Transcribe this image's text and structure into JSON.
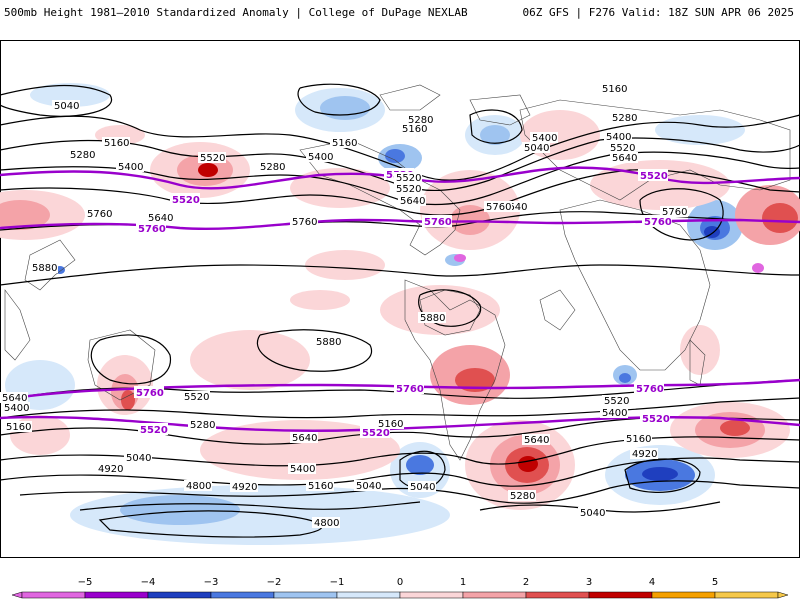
{
  "header": {
    "left_title": "500mb Height 1981–2010 Standardized Anomaly | College of DuPage NEXLAB",
    "right_title": "06Z GFS | F276 Valid: 18Z SUN APR 06 2025"
  },
  "colorbar": {
    "ticks": [
      "−5",
      "−4",
      "−3",
      "−2",
      "−1",
      "0",
      "1",
      "2",
      "3",
      "4",
      "5"
    ],
    "colors": [
      "#e066e0",
      "#9900cc",
      "#1f3fbf",
      "#4a78e0",
      "#9fc4f0",
      "#d6e8fa",
      "#fbd6d8",
      "#f4a3a8",
      "#e05050",
      "#c00000",
      "#f5a000",
      "#f5c84a"
    ]
  },
  "map": {
    "contour_labels": [
      {
        "text": "5040",
        "kind": "height"
      },
      {
        "text": "5160",
        "kind": "height"
      },
      {
        "text": "5280",
        "kind": "height"
      },
      {
        "text": "5400",
        "kind": "height"
      },
      {
        "text": "5520",
        "kind": "height"
      },
      {
        "text": "5640",
        "kind": "height"
      },
      {
        "text": "5760",
        "kind": "height"
      },
      {
        "text": "5880",
        "kind": "height"
      },
      {
        "text": "5160",
        "kind": "height"
      },
      {
        "text": "5280",
        "kind": "height"
      },
      {
        "text": "5400",
        "kind": "height"
      },
      {
        "text": "5520",
        "kind": "height"
      },
      {
        "text": "5640",
        "kind": "height"
      },
      {
        "text": "5760",
        "kind": "height"
      },
      {
        "text": "5880",
        "kind": "height"
      },
      {
        "text": "5880",
        "kind": "height"
      },
      {
        "text": "5160",
        "kind": "height"
      },
      {
        "text": "5280",
        "kind": "height"
      },
      {
        "text": "5400",
        "kind": "height"
      },
      {
        "text": "5520",
        "kind": "height"
      },
      {
        "text": "5640",
        "kind": "height"
      },
      {
        "text": "5760",
        "kind": "height"
      },
      {
        "text": "5520",
        "kind": "highlight"
      },
      {
        "text": "5520",
        "kind": "highlight"
      },
      {
        "text": "5760",
        "kind": "highlight"
      },
      {
        "text": "5760",
        "kind": "highlight"
      },
      {
        "text": "5520",
        "kind": "highlight"
      },
      {
        "text": "5760",
        "kind": "highlight"
      },
      {
        "text": "5760",
        "kind": "highlight"
      },
      {
        "text": "5760",
        "kind": "highlight"
      },
      {
        "text": "5760",
        "kind": "highlight"
      },
      {
        "text": "5520",
        "kind": "highlight"
      },
      {
        "text": "5520",
        "kind": "highlight"
      },
      {
        "text": "5520",
        "kind": "highlight"
      },
      {
        "text": "5640",
        "kind": "height"
      },
      {
        "text": "5400",
        "kind": "height"
      },
      {
        "text": "5160",
        "kind": "height"
      },
      {
        "text": "5520",
        "kind": "height"
      },
      {
        "text": "5280",
        "kind": "height"
      },
      {
        "text": "5640",
        "kind": "height"
      },
      {
        "text": "5400",
        "kind": "height"
      },
      {
        "text": "5160",
        "kind": "height"
      },
      {
        "text": "5040",
        "kind": "height"
      },
      {
        "text": "4920",
        "kind": "height"
      },
      {
        "text": "4800",
        "kind": "height"
      },
      {
        "text": "4920",
        "kind": "height"
      },
      {
        "text": "4800",
        "kind": "height"
      },
      {
        "text": "5040",
        "kind": "height"
      },
      {
        "text": "5160",
        "kind": "height"
      },
      {
        "text": "5040",
        "kind": "height"
      },
      {
        "text": "5280",
        "kind": "height"
      },
      {
        "text": "5640",
        "kind": "height"
      },
      {
        "text": "5520",
        "kind": "height"
      },
      {
        "text": "5400",
        "kind": "height"
      },
      {
        "text": "5160",
        "kind": "height"
      },
      {
        "text": "4920",
        "kind": "height"
      },
      {
        "text": "5040",
        "kind": "height"
      },
      {
        "text": "5640",
        "kind": "height"
      },
      {
        "text": "5400",
        "kind": "height"
      },
      {
        "text": "5160",
        "kind": "height"
      },
      {
        "text": "5040",
        "kind": "height"
      },
      {
        "text": "5280",
        "kind": "height"
      },
      {
        "text": "5760",
        "kind": "height"
      },
      {
        "text": "5520",
        "kind": "height"
      }
    ]
  }
}
